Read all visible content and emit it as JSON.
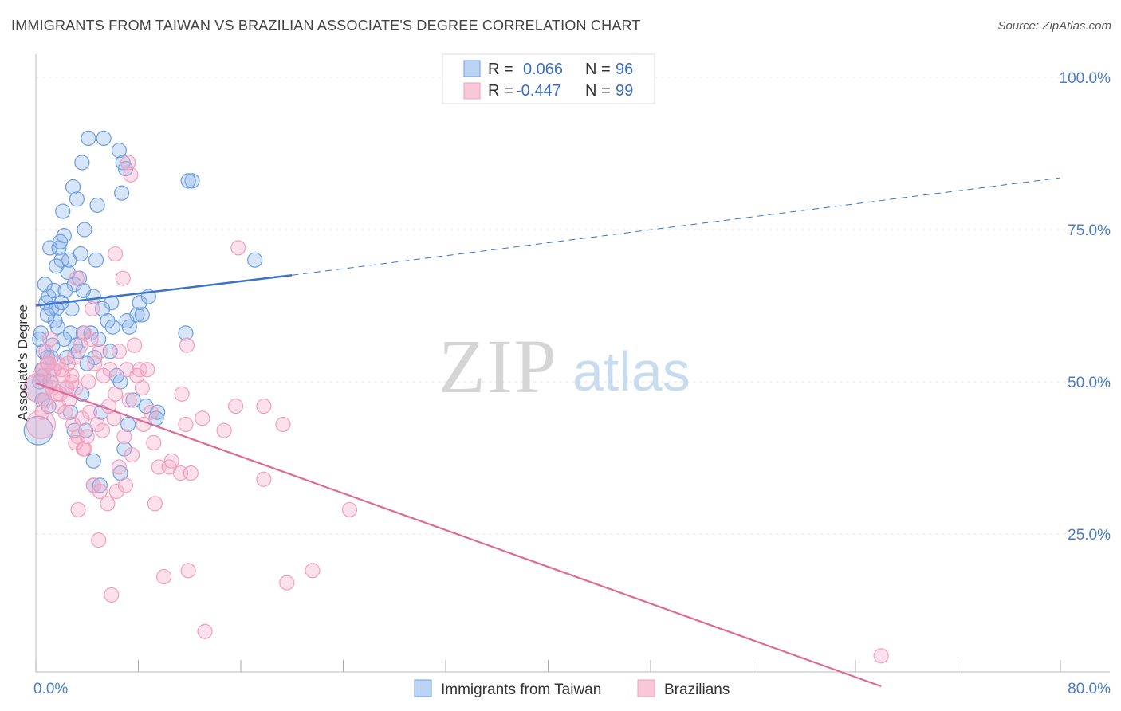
{
  "title": "IMMIGRANTS FROM TAIWAN VS BRAZILIAN ASSOCIATE'S DEGREE CORRELATION CHART",
  "source": "Source: ZipAtlas.com",
  "watermark": {
    "zip": "ZIP",
    "atlas": "atlas"
  },
  "legend": {
    "r_label": "R =",
    "n_label": "N =",
    "series1": {
      "r": "0.066",
      "n": "96"
    },
    "series2": {
      "r": "-0.447",
      "n": "99"
    }
  },
  "chart_data": {
    "type": "scatter",
    "title": "IMMIGRANTS FROM TAIWAN VS BRAZILIAN ASSOCIATE'S DEGREE CORRELATION CHART",
    "xlabel": "",
    "ylabel": "Associate's Degree",
    "xlim": [
      0,
      80
    ],
    "ylim": [
      0,
      104
    ],
    "x_tick_labels": [
      "0.0%",
      "80.0%"
    ],
    "y_tick_labels": [
      "100.0%",
      "75.0%",
      "50.0%",
      "25.0%"
    ],
    "y_ticks": [
      100,
      75,
      50,
      25
    ],
    "grid": true,
    "legend_position": "top-center",
    "colors": {
      "taiwan": "#6a9de0",
      "brazil": "#f0a0bc",
      "taiwan_line": "#3b73c8",
      "brazil_line": "#e06a95"
    },
    "series": [
      {
        "name": "Immigrants from Taiwan",
        "r": 0.066,
        "n": 96,
        "trend": {
          "x0": 0,
          "y0": 62.5,
          "x1": 20,
          "y1": 67.5,
          "dash_to_x": 80,
          "dash_to_y": 83.5
        },
        "points": [
          [
            0.3,
            57
          ],
          [
            0.5,
            52
          ],
          [
            0.2,
            49
          ],
          [
            0.8,
            63
          ],
          [
            1.0,
            64
          ],
          [
            1.2,
            62
          ],
          [
            0.7,
            66
          ],
          [
            1.5,
            60
          ],
          [
            0.4,
            58
          ],
          [
            0.9,
            54
          ],
          [
            1.8,
            72
          ],
          [
            2.2,
            74
          ],
          [
            2.0,
            70
          ],
          [
            1.6,
            69
          ],
          [
            2.5,
            68
          ],
          [
            3.0,
            66
          ],
          [
            2.8,
            62
          ],
          [
            1.3,
            56
          ],
          [
            2.4,
            54
          ],
          [
            0.6,
            51
          ],
          [
            2.1,
            78
          ],
          [
            3.2,
            80
          ],
          [
            2.9,
            82
          ],
          [
            3.6,
            86
          ],
          [
            4.1,
            90
          ],
          [
            5.3,
            90
          ],
          [
            6.5,
            88
          ],
          [
            6.8,
            86
          ],
          [
            4.8,
            79
          ],
          [
            6.7,
            81
          ],
          [
            7.0,
            85
          ],
          [
            12.2,
            83
          ],
          [
            11.9,
            83
          ],
          [
            3.8,
            75
          ],
          [
            1.1,
            72
          ],
          [
            1.9,
            73
          ],
          [
            3.5,
            71
          ],
          [
            4.7,
            70
          ],
          [
            2.6,
            70
          ],
          [
            1.4,
            65
          ],
          [
            2.3,
            65
          ],
          [
            3.4,
            67
          ],
          [
            4.5,
            64
          ],
          [
            5.9,
            63
          ],
          [
            8.1,
            63
          ],
          [
            7.9,
            61
          ],
          [
            8.3,
            61
          ],
          [
            7.1,
            60
          ],
          [
            7.3,
            59
          ],
          [
            1.7,
            59
          ],
          [
            2.7,
            58
          ],
          [
            3.7,
            58
          ],
          [
            4.3,
            58
          ],
          [
            4.9,
            57
          ],
          [
            5.6,
            60
          ],
          [
            1.2,
            54
          ],
          [
            3.1,
            56
          ],
          [
            3.3,
            55
          ],
          [
            4.6,
            54
          ],
          [
            6.3,
            51
          ],
          [
            0.2,
            42
          ],
          [
            0.3,
            50
          ],
          [
            0.5,
            47
          ],
          [
            1.0,
            46
          ],
          [
            2.4,
            49
          ],
          [
            3.6,
            48
          ],
          [
            5.1,
            45
          ],
          [
            6.6,
            50
          ],
          [
            8.6,
            46
          ],
          [
            9.5,
            45
          ],
          [
            9.4,
            44
          ],
          [
            7.2,
            43
          ],
          [
            3.9,
            42
          ],
          [
            3.0,
            42
          ],
          [
            4.5,
            37
          ],
          [
            6.9,
            39
          ],
          [
            6.6,
            35
          ],
          [
            4.5,
            33
          ],
          [
            5.0,
            33
          ],
          [
            11.7,
            58
          ],
          [
            17.1,
            70
          ],
          [
            1.6,
            62
          ],
          [
            2.0,
            63
          ],
          [
            0.9,
            61
          ],
          [
            3.7,
            65
          ],
          [
            5.2,
            62
          ],
          [
            6.0,
            59
          ],
          [
            8.8,
            64
          ],
          [
            2.2,
            57
          ],
          [
            1.4,
            52
          ],
          [
            4.0,
            53
          ],
          [
            5.8,
            55
          ],
          [
            0.6,
            55
          ],
          [
            1.1,
            50
          ],
          [
            2.7,
            45
          ],
          [
            7.6,
            47
          ]
        ]
      },
      {
        "name": "Brazilians",
        "r": -0.447,
        "n": 99,
        "trend": {
          "x0": 0,
          "y0": 49.8,
          "x1": 66,
          "y1": 0
        },
        "points": [
          [
            0.2,
            49
          ],
          [
            0.3,
            51
          ],
          [
            0.6,
            52
          ],
          [
            0.4,
            43
          ],
          [
            0.8,
            55
          ],
          [
            1.0,
            53
          ],
          [
            1.2,
            50
          ],
          [
            1.6,
            48
          ],
          [
            1.4,
            52
          ],
          [
            2.1,
            51
          ],
          [
            0.7,
            47
          ],
          [
            1.8,
            46
          ],
          [
            2.5,
            53
          ],
          [
            2.8,
            50
          ],
          [
            3.1,
            49
          ],
          [
            3.5,
            56
          ],
          [
            3.8,
            58
          ],
          [
            4.3,
            57
          ],
          [
            5.0,
            55
          ],
          [
            4.6,
            53
          ],
          [
            5.8,
            52
          ],
          [
            6.2,
            48
          ],
          [
            7.1,
            52
          ],
          [
            7.7,
            56
          ],
          [
            8.3,
            49
          ],
          [
            8.1,
            52
          ],
          [
            7.3,
            47
          ],
          [
            9.0,
            45
          ],
          [
            11.4,
            48
          ],
          [
            11.7,
            43
          ],
          [
            13.0,
            44
          ],
          [
            14.7,
            42
          ],
          [
            15.6,
            46
          ],
          [
            17.8,
            46
          ],
          [
            19.3,
            43
          ],
          [
            7.2,
            86
          ],
          [
            7.4,
            84
          ],
          [
            6.2,
            71
          ],
          [
            6.8,
            67
          ],
          [
            3.2,
            67
          ],
          [
            4.4,
            62
          ],
          [
            15.8,
            72
          ],
          [
            2.4,
            49
          ],
          [
            1.9,
            48
          ],
          [
            2.3,
            45
          ],
          [
            2.9,
            43
          ],
          [
            3.3,
            41
          ],
          [
            3.7,
            39
          ],
          [
            4.0,
            41
          ],
          [
            4.8,
            43
          ],
          [
            5.2,
            42
          ],
          [
            6.1,
            44
          ],
          [
            6.9,
            41
          ],
          [
            7.5,
            38
          ],
          [
            8.4,
            43
          ],
          [
            9.6,
            36
          ],
          [
            9.2,
            40
          ],
          [
            10.4,
            36
          ],
          [
            10.6,
            37
          ],
          [
            11.3,
            35
          ],
          [
            12.1,
            35
          ],
          [
            17.8,
            34
          ],
          [
            3.1,
            40
          ],
          [
            3.8,
            39
          ],
          [
            4.5,
            33
          ],
          [
            5.0,
            32
          ],
          [
            5.6,
            30
          ],
          [
            6.3,
            32
          ],
          [
            6.5,
            36
          ],
          [
            7.0,
            33
          ],
          [
            9.3,
            30
          ],
          [
            3.3,
            29
          ],
          [
            4.9,
            24
          ],
          [
            5.9,
            15
          ],
          [
            10.0,
            18
          ],
          [
            11.9,
            19
          ],
          [
            19.6,
            17
          ],
          [
            21.6,
            19
          ],
          [
            13.2,
            9
          ],
          [
            24.5,
            29
          ],
          [
            66.0,
            5
          ],
          [
            0.5,
            45
          ],
          [
            1.1,
            57
          ],
          [
            1.7,
            53
          ],
          [
            2.6,
            47
          ],
          [
            3.0,
            54
          ],
          [
            4.1,
            50
          ],
          [
            5.3,
            51
          ],
          [
            6.5,
            55
          ],
          [
            7.9,
            51
          ],
          [
            8.7,
            52
          ],
          [
            11.8,
            56
          ],
          [
            2.0,
            52
          ],
          [
            2.8,
            51
          ],
          [
            1.3,
            49
          ],
          [
            3.6,
            44
          ],
          [
            4.2,
            45
          ],
          [
            5.7,
            46
          ],
          [
            0.9,
            53
          ]
        ]
      }
    ]
  },
  "bottom_legend": {
    "item1": "Immigrants from Taiwan",
    "item2": "Brazilians"
  }
}
